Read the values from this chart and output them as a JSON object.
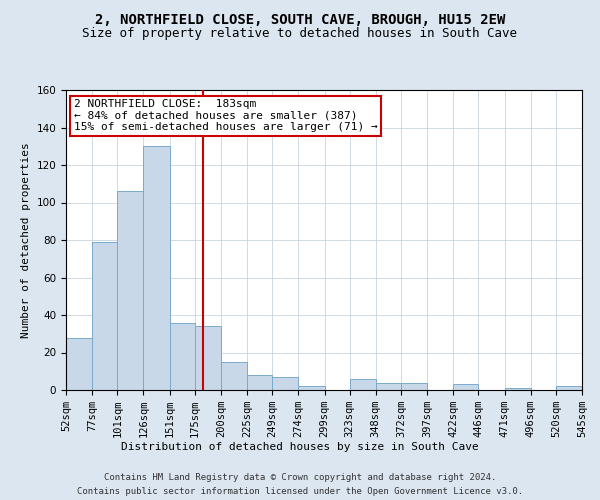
{
  "title": "2, NORTHFIELD CLOSE, SOUTH CAVE, BROUGH, HU15 2EW",
  "subtitle": "Size of property relative to detached houses in South Cave",
  "xlabel": "Distribution of detached houses by size in South Cave",
  "ylabel": "Number of detached properties",
  "bar_color": "#c8d8e8",
  "bar_edge_color": "#7aaacb",
  "grid_color": "#c8d4e0",
  "vline_x": 183,
  "vline_color": "#cc0000",
  "annotation_text": "2 NORTHFIELD CLOSE:  183sqm\n← 84% of detached houses are smaller (387)\n15% of semi-detached houses are larger (71) →",
  "annotation_box_color": "#cc0000",
  "bin_edges": [
    52,
    77,
    101,
    126,
    151,
    175,
    200,
    225,
    249,
    274,
    299,
    323,
    348,
    372,
    397,
    422,
    446,
    471,
    496,
    520,
    545
  ],
  "bar_heights": [
    28,
    79,
    106,
    130,
    36,
    34,
    15,
    8,
    7,
    2,
    0,
    6,
    4,
    4,
    0,
    3,
    0,
    1,
    0,
    2
  ],
  "ylim": [
    0,
    160
  ],
  "yticks": [
    0,
    20,
    40,
    60,
    80,
    100,
    120,
    140,
    160
  ],
  "footer_line1": "Contains HM Land Registry data © Crown copyright and database right 2024.",
  "footer_line2": "Contains public sector information licensed under the Open Government Licence v3.0.",
  "background_color": "#dce6f0",
  "plot_bg_color": "#ffffff",
  "title_fontsize": 10,
  "subtitle_fontsize": 9,
  "axis_label_fontsize": 8,
  "tick_fontsize": 7.5,
  "footer_fontsize": 6.5,
  "annotation_fontsize": 8
}
